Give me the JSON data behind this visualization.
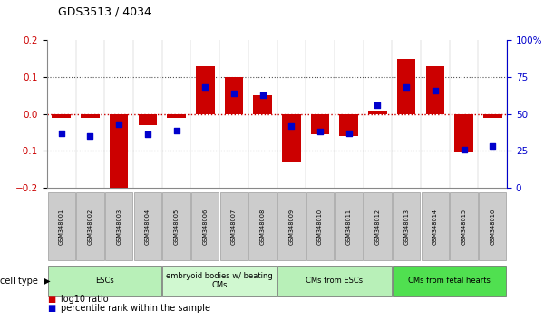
{
  "title": "GDS3513 / 4034",
  "samples": [
    "GSM348001",
    "GSM348002",
    "GSM348003",
    "GSM348004",
    "GSM348005",
    "GSM348006",
    "GSM348007",
    "GSM348008",
    "GSM348009",
    "GSM348010",
    "GSM348011",
    "GSM348012",
    "GSM348013",
    "GSM348014",
    "GSM348015",
    "GSM348016"
  ],
  "log10_ratio": [
    -0.01,
    -0.01,
    -0.2,
    -0.03,
    -0.01,
    0.13,
    0.1,
    0.05,
    -0.13,
    -0.055,
    -0.06,
    0.01,
    0.15,
    0.13,
    -0.105,
    -0.01
  ],
  "percentile_rank": [
    37,
    35,
    43,
    36,
    39,
    68,
    64,
    63,
    42,
    38,
    37,
    56,
    68,
    66,
    26,
    28
  ],
  "cell_types": [
    {
      "label": "ESCs",
      "start": 0,
      "end": 4,
      "color": "#b8f0b8"
    },
    {
      "label": "embryoid bodies w/ beating\nCMs",
      "start": 4,
      "end": 8,
      "color": "#d0f8d0"
    },
    {
      "label": "CMs from ESCs",
      "start": 8,
      "end": 12,
      "color": "#b8f0b8"
    },
    {
      "label": "CMs from fetal hearts",
      "start": 12,
      "end": 16,
      "color": "#50e050"
    }
  ],
  "ylim_left": [
    -0.2,
    0.2
  ],
  "ylim_right": [
    0,
    100
  ],
  "yticks_left": [
    -0.2,
    -0.1,
    0.0,
    0.1,
    0.2
  ],
  "yticks_right": [
    0,
    25,
    50,
    75,
    100
  ],
  "bar_color": "#cc0000",
  "dot_color": "#0000cc",
  "background_color": "#ffffff",
  "legend_items": [
    "log10 ratio",
    "percentile rank within the sample"
  ],
  "zero_line_color": "#cc0000",
  "dotted_line_color": "#555555",
  "sample_box_color": "#cccccc",
  "sample_box_edge": "#888888"
}
